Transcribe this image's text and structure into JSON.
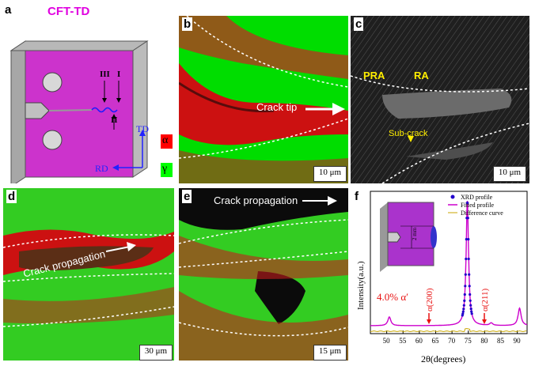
{
  "panel_a": {
    "label": "a",
    "title": "CFT-TD",
    "marks": [
      "III",
      "I",
      "II"
    ],
    "axis_td": "TD",
    "axis_rd": "RD",
    "legend": [
      {
        "symbol": "α",
        "color": "#ff0000"
      },
      {
        "symbol": "γ",
        "color": "#00ff00"
      }
    ]
  },
  "panel_b": {
    "label": "b",
    "annotation": "Crack tip",
    "scale": "10 μm"
  },
  "panel_c": {
    "label": "c",
    "pra": "PRA",
    "ra": "RA",
    "subcrack": "Sub-crack",
    "scale": "10 μm"
  },
  "panel_d": {
    "label": "d",
    "annotation": "Crack propagation",
    "scale": "30 μm"
  },
  "panel_e": {
    "label": "e",
    "annotation": "Crack propagation",
    "scale": "15 μm"
  },
  "panel_f": {
    "label": "f",
    "inset_dim": "2 mm",
    "annotation_pct": "4.0% α′",
    "peak_label_1": "α(200)",
    "peak_label_2": "α(211)",
    "chart_data": {
      "type": "line",
      "title": "",
      "xlabel": "2θ(degrees)",
      "ylabel": "Intensity(a.u.)",
      "xlim": [
        45,
        93
      ],
      "xticks": [
        50,
        55,
        60,
        65,
        70,
        75,
        80,
        85,
        90
      ],
      "legend": [
        "XRD profile",
        "Fitted profile",
        "Difference curve"
      ],
      "peaks": [
        {
          "position": 50.8,
          "relative_intensity": 0.07
        },
        {
          "position": 74.7,
          "relative_intensity": 1.0
        },
        {
          "position": 82.0,
          "relative_intensity": 0.02
        },
        {
          "position": 90.7,
          "relative_intensity": 0.14
        }
      ],
      "alpha_prime_fraction": 4.0
    }
  }
}
